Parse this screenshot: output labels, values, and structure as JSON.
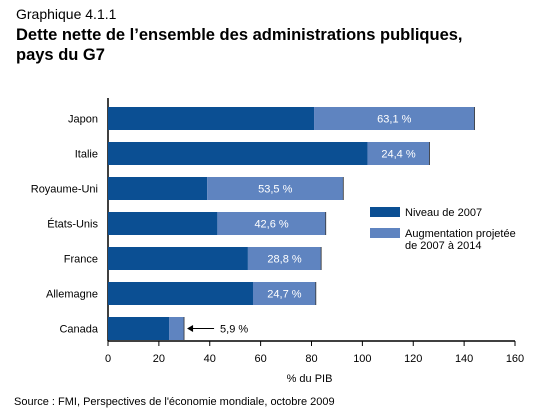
{
  "header": {
    "supertitle": "Graphique 4.1.1",
    "title_line1": "Dette nette de l’ensemble des administrations publiques,",
    "title_line2": "pays du G7"
  },
  "chart_data": {
    "type": "bar",
    "orientation": "horizontal",
    "stacked": true,
    "categories": [
      "Japon",
      "Italie",
      "Royaume-Uni",
      "États-Unis",
      "France",
      "Allemagne",
      "Canada"
    ],
    "series": [
      {
        "name": "Niveau de 2007",
        "values": [
          81,
          102,
          39,
          43,
          55,
          57,
          24
        ],
        "color": "#0b4f93"
      },
      {
        "name": "Augmentation projetée de 2007 à 2014",
        "values": [
          63.1,
          24.4,
          53.5,
          42.6,
          28.8,
          24.7,
          5.9
        ],
        "color": "#5f84c0"
      }
    ],
    "data_labels": [
      "63,1 %",
      "24,4 %",
      "53,5 %",
      "42,6 %",
      "28,8 %",
      "24,7 %",
      "5,9 %"
    ],
    "xlabel": "% du PIB",
    "xlim": [
      0,
      160
    ],
    "xticks": [
      0,
      20,
      40,
      60,
      80,
      100,
      120,
      140,
      160
    ],
    "grid": false,
    "legend": {
      "position": "right",
      "entries": [
        {
          "label_lines": [
            "Niveau de 2007"
          ]
        },
        {
          "label_lines": [
            "Augmentation projetée",
            "de 2007 à 2014"
          ]
        }
      ]
    },
    "annotation": {
      "category": "Canada",
      "text": "5,9 %",
      "style": "arrow"
    }
  },
  "footer": {
    "source": "Source : FMI, Perspectives de l'économie mondiale, octobre 2009"
  }
}
